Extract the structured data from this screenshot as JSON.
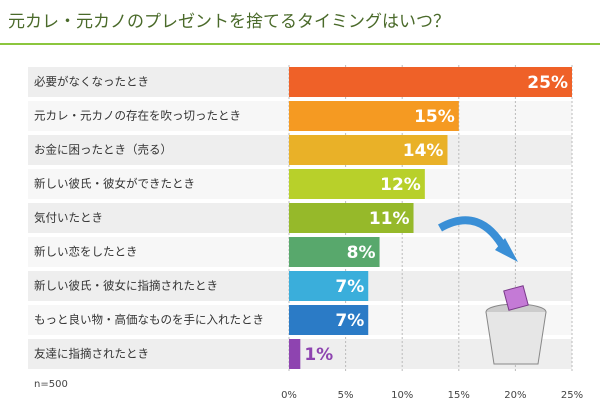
{
  "chart_data": {
    "type": "bar",
    "orientation": "horizontal",
    "title": "元カレ・元カノのプレゼントを捨てるタイミングはいつ？",
    "note": "n=500",
    "categories": [
      "必要がなくなったとき",
      "元カレ・元カノの存在を吹っ切ったとき",
      "お金に困ったとき（売る）",
      "新しい彼氏・彼女ができたとき",
      "気付いたとき",
      "新しい恋をしたとき",
      "新しい彼氏・彼女に指摘されたとき",
      "もっと良い物・高価なものを手に入れたとき",
      "友達に指摘されたとき"
    ],
    "values": [
      25,
      15,
      14,
      12,
      11,
      8,
      7,
      7,
      1
    ],
    "value_labels": [
      "25%",
      "15%",
      "14%",
      "12%",
      "11%",
      "8%",
      "7%",
      "7%",
      "1%"
    ],
    "colors": [
      "#ef6128",
      "#f59a22",
      "#e9b128",
      "#b8d02a",
      "#96b92a",
      "#58a86c",
      "#3aaedb",
      "#2b7bc6",
      "#8e44b0"
    ],
    "xlim": [
      0,
      25
    ],
    "xticks": [
      {
        "value": 0,
        "label": "0%"
      },
      {
        "value": 5,
        "label": "5%"
      },
      {
        "value": 10,
        "label": "10%"
      },
      {
        "value": 15,
        "label": "15%"
      },
      {
        "value": 20,
        "label": "20%"
      },
      {
        "value": 25,
        "label": "25%"
      }
    ],
    "grid": true
  }
}
